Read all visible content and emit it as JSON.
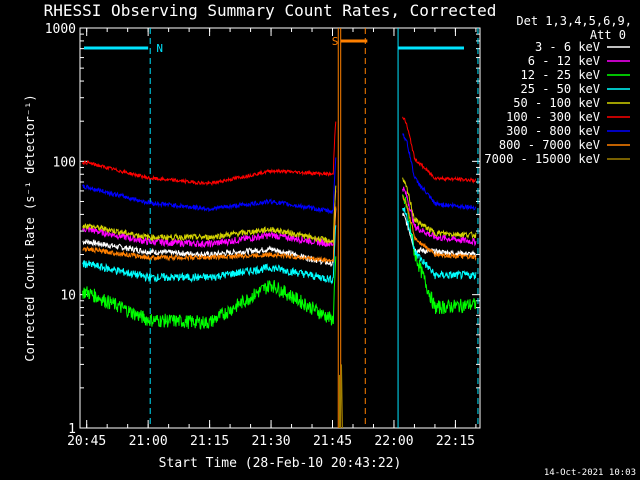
{
  "chart_data": {
    "type": "line",
    "title": "RHESSI Observing Summary Count Rates, Corrected",
    "xlabel": "Start Time (28-Feb-10 20:43:22)",
    "ylabel": "Corrected Count Rate (s⁻¹ detector⁻¹)",
    "yscale": "log",
    "ylim": [
      1,
      1000
    ],
    "xlim": [
      "20:43:22",
      "22:21:00"
    ],
    "x_ticks": [
      "20:45",
      "21:00",
      "21:15",
      "21:30",
      "21:45",
      "22:00",
      "22:15"
    ],
    "y_ticks": [
      "1",
      "10",
      "100",
      "1000"
    ],
    "legend": {
      "placement": "right",
      "header": [
        "Det 1,3,4,5,6,9,",
        "Att 0"
      ]
    },
    "flags": [
      {
        "label": "N",
        "color": "#00e5ff"
      },
      {
        "label": "S",
        "color": "#ff8000"
      }
    ],
    "gaps": [
      [
        "21:47",
        "22:01"
      ]
    ],
    "series": [
      {
        "name": "3 - 6 keV",
        "color": "#ffffff",
        "x": [
          "20:45",
          "21:00",
          "21:15",
          "21:30",
          "21:45",
          "22:03",
          "22:10",
          "22:20"
        ],
        "y": [
          25,
          21,
          20,
          22,
          17,
          22,
          21,
          20
        ]
      },
      {
        "name": "6 - 12 keV",
        "color": "#ff00ff",
        "x": [
          "20:45",
          "21:00",
          "21:15",
          "21:30",
          "21:45",
          "22:03",
          "22:10",
          "22:20"
        ],
        "y": [
          31,
          25,
          24,
          28,
          24,
          35,
          27,
          25
        ]
      },
      {
        "name": "12 - 25 keV",
        "color": "#00ff00",
        "x": [
          "20:45",
          "21:00",
          "21:15",
          "21:30",
          "21:45",
          "22:03",
          "22:10",
          "22:20"
        ],
        "y": [
          10.5,
          6.5,
          6.2,
          12,
          6.5,
          30,
          8,
          8.5
        ]
      },
      {
        "name": "25 - 50 keV",
        "color": "#00ffff",
        "x": [
          "20:45",
          "21:00",
          "21:15",
          "21:30",
          "21:45",
          "22:03",
          "22:10",
          "22:20"
        ],
        "y": [
          17,
          13.5,
          13.5,
          16,
          13,
          25,
          14,
          14
        ]
      },
      {
        "name": "50 - 100 keV",
        "color": "#d2d200",
        "x": [
          "20:45",
          "21:00",
          "21:15",
          "21:30",
          "21:45",
          "22:03",
          "22:10",
          "22:20"
        ],
        "y": [
          33,
          27,
          27,
          31,
          25,
          40,
          29,
          28
        ]
      },
      {
        "name": "100 - 300 keV",
        "color": "#ff0000",
        "x": [
          "20:45",
          "21:00",
          "21:15",
          "21:30",
          "21:45",
          "22:03",
          "22:10",
          "22:20"
        ],
        "y": [
          98,
          75,
          68,
          85,
          80,
          120,
          75,
          72
        ]
      },
      {
        "name": "300 - 800 keV",
        "color": "#0000ff",
        "x": [
          "20:45",
          "21:00",
          "21:15",
          "21:30",
          "21:45",
          "22:03",
          "22:10",
          "22:20"
        ],
        "y": [
          64,
          49,
          44,
          50,
          42,
          90,
          48,
          45
        ]
      },
      {
        "name": "800 - 7000 keV",
        "color": "#ff8000",
        "x": [
          "20:45",
          "21:00",
          "21:15",
          "21:30",
          "21:45",
          "22:03",
          "22:10",
          "22:20"
        ],
        "y": [
          22,
          19,
          19,
          20,
          18,
          30,
          20,
          19
        ]
      },
      {
        "name": "7000 - 15000 keV",
        "color": "#a08000",
        "x": [
          "21:47"
        ],
        "y": [
          2.5
        ]
      }
    ]
  },
  "footer": {
    "timestamp": "14-Oct-2021 10:03"
  }
}
